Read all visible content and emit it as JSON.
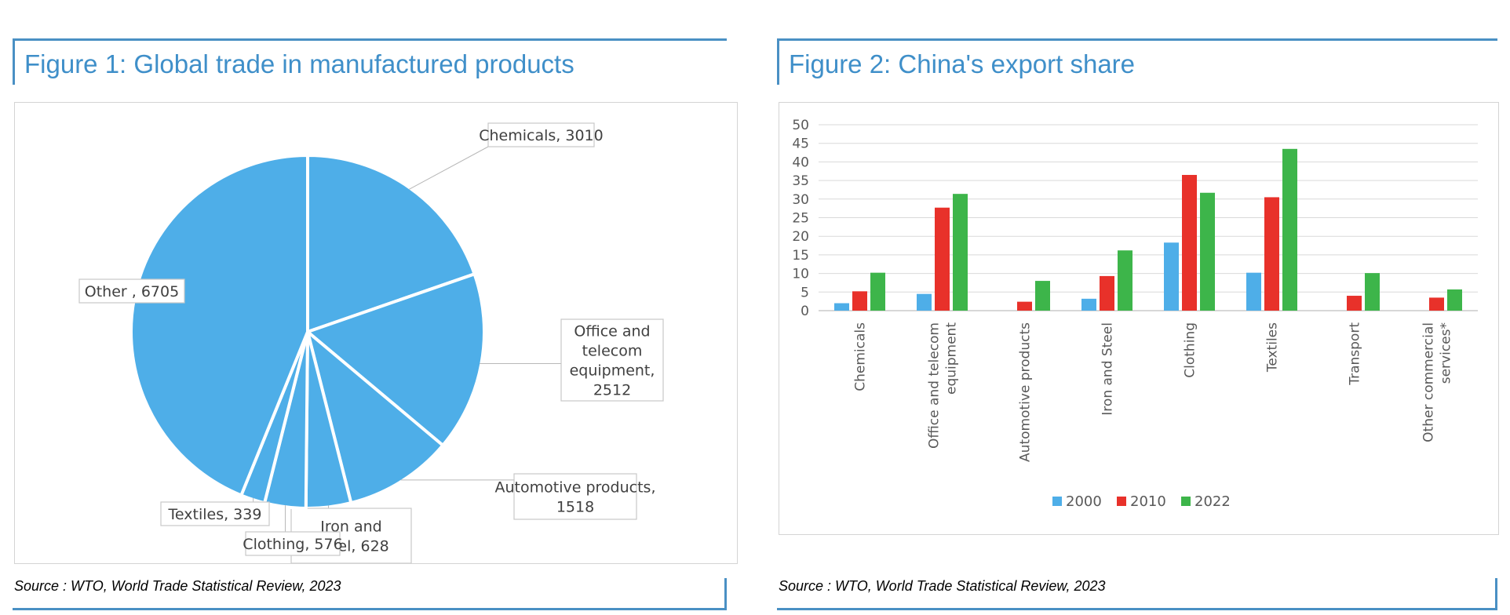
{
  "figure1": {
    "title": "Figure 1: Global trade in manufactured products",
    "source": "Source : WTO, World Trade Statistical Review, 2023",
    "chart_data": {
      "type": "pie",
      "color": "#4eaee8",
      "slices": [
        {
          "label": "Chemicals, 3010",
          "name": "Chemicals",
          "value": 3010
        },
        {
          "label": "Office and telecom equipment, 2512",
          "name": "Office and telecom equipment",
          "value": 2512
        },
        {
          "label": "Automotive products, 1518",
          "name": "Automotive products",
          "value": 1518
        },
        {
          "label": "Iron and Steel, 628",
          "name": "Iron and Steel",
          "value": 628
        },
        {
          "label": "Clothing, 576",
          "name": "Clothing",
          "value": 576
        },
        {
          "label": "Textiles, 339",
          "name": "Textiles",
          "value": 339
        },
        {
          "label": "Other , 6705",
          "name": "Other",
          "value": 6705
        }
      ]
    }
  },
  "figure2": {
    "title": "Figure 2: China's export share",
    "source": "Source : WTO, World Trade Statistical Review, 2023",
    "chart_data": {
      "type": "bar",
      "ylim": [
        0,
        50
      ],
      "yticks": [
        0,
        5,
        10,
        15,
        20,
        25,
        30,
        35,
        40,
        45,
        50
      ],
      "grid": true,
      "legend_position": "bottom",
      "categories": [
        "Chemicals",
        "Office and telecom equipment",
        "Automotive products",
        "Iron and Steel",
        "Clothing",
        "Textiles",
        "Transport",
        "Other commercial services*"
      ],
      "series": [
        {
          "name": "2000",
          "color": "#4eaee8",
          "values": [
            2,
            4.5,
            0,
            3.2,
            18.3,
            10.2,
            0,
            0
          ]
        },
        {
          "name": "2010",
          "color": "#e8312a",
          "values": [
            5.2,
            27.7,
            2.4,
            9.3,
            36.5,
            30.5,
            4,
            3.5
          ]
        },
        {
          "name": "2022",
          "color": "#3db54a",
          "values": [
            10.2,
            31.4,
            8,
            16.2,
            31.7,
            43.5,
            10.1,
            5.7
          ]
        }
      ]
    }
  }
}
